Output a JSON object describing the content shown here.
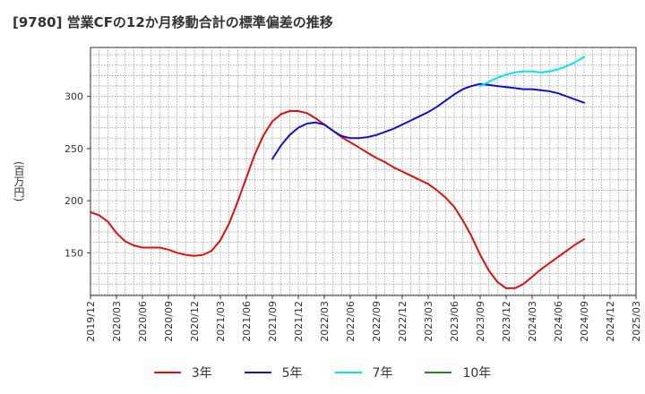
{
  "chart_data": {
    "type": "line",
    "title": "[9780]  営業CFの12か月移動合計の標準偏差の推移",
    "ylabel": "(百万円)",
    "xlabel": "",
    "ylim": [
      109,
      347
    ],
    "yticks": [
      150,
      200,
      250,
      300
    ],
    "x_ticks": [
      "2019/12",
      "2020/03",
      "2020/06",
      "2020/09",
      "2020/12",
      "2021/03",
      "2021/06",
      "2021/09",
      "2021/12",
      "2022/03",
      "2022/06",
      "2022/09",
      "2022/12",
      "2023/03",
      "2023/06",
      "2023/09",
      "2023/12",
      "2024/03",
      "2024/06",
      "2024/09",
      "2024/12",
      "2025/03"
    ],
    "grid": true,
    "legend_position": "bottom",
    "series": [
      {
        "name": "3年",
        "color": "#dd1111",
        "values": [
          [
            "2019/12",
            189
          ],
          [
            "2020/01",
            186
          ],
          [
            "2020/02",
            180
          ],
          [
            "2020/03",
            169
          ],
          [
            "2020/04",
            161
          ],
          [
            "2020/05",
            157
          ],
          [
            "2020/06",
            155
          ],
          [
            "2020/07",
            155
          ],
          [
            "2020/08",
            155
          ],
          [
            "2020/09",
            153
          ],
          [
            "2020/10",
            150
          ],
          [
            "2020/11",
            148
          ],
          [
            "2020/12",
            147
          ],
          [
            "2021/01",
            148
          ],
          [
            "2021/02",
            152
          ],
          [
            "2021/03",
            162
          ],
          [
            "2021/04",
            178
          ],
          [
            "2021/05",
            199
          ],
          [
            "2021/06",
            222
          ],
          [
            "2021/07",
            245
          ],
          [
            "2021/08",
            263
          ],
          [
            "2021/09",
            276
          ],
          [
            "2021/10",
            283
          ],
          [
            "2021/11",
            286
          ],
          [
            "2021/12",
            286
          ],
          [
            "2022/01",
            284
          ],
          [
            "2022/02",
            279
          ],
          [
            "2022/03",
            273
          ],
          [
            "2022/04",
            267
          ],
          [
            "2022/05",
            261
          ],
          [
            "2022/06",
            256
          ],
          [
            "2022/07",
            251
          ],
          [
            "2022/08",
            246
          ],
          [
            "2022/09",
            241
          ],
          [
            "2022/10",
            237
          ],
          [
            "2022/11",
            232
          ],
          [
            "2022/12",
            228
          ],
          [
            "2023/01",
            224
          ],
          [
            "2023/02",
            220
          ],
          [
            "2023/03",
            216
          ],
          [
            "2023/04",
            210
          ],
          [
            "2023/05",
            203
          ],
          [
            "2023/06",
            194
          ],
          [
            "2023/07",
            181
          ],
          [
            "2023/08",
            166
          ],
          [
            "2023/09",
            148
          ],
          [
            "2023/10",
            133
          ],
          [
            "2023/11",
            122
          ],
          [
            "2023/12",
            116
          ],
          [
            "2024/01",
            116
          ],
          [
            "2024/02",
            120
          ],
          [
            "2024/03",
            127
          ],
          [
            "2024/04",
            134
          ],
          [
            "2024/05",
            140
          ],
          [
            "2024/06",
            146
          ],
          [
            "2024/07",
            152
          ],
          [
            "2024/08",
            158
          ],
          [
            "2024/09",
            163
          ]
        ]
      },
      {
        "name": "5年",
        "color": "#1111cc",
        "values": [
          [
            "2021/09",
            240
          ],
          [
            "2021/10",
            253
          ],
          [
            "2021/11",
            263
          ],
          [
            "2021/12",
            270
          ],
          [
            "2022/01",
            274
          ],
          [
            "2022/02",
            275
          ],
          [
            "2022/03",
            273
          ],
          [
            "2022/04",
            267
          ],
          [
            "2022/05",
            262
          ],
          [
            "2022/06",
            260
          ],
          [
            "2022/07",
            260
          ],
          [
            "2022/08",
            261
          ],
          [
            "2022/09",
            263
          ],
          [
            "2022/10",
            266
          ],
          [
            "2022/11",
            269
          ],
          [
            "2022/12",
            273
          ],
          [
            "2023/01",
            277
          ],
          [
            "2023/02",
            281
          ],
          [
            "2023/03",
            285
          ],
          [
            "2023/04",
            290
          ],
          [
            "2023/05",
            296
          ],
          [
            "2023/06",
            302
          ],
          [
            "2023/07",
            307
          ],
          [
            "2023/08",
            310
          ],
          [
            "2023/09",
            312
          ],
          [
            "2023/10",
            311
          ],
          [
            "2023/11",
            310
          ],
          [
            "2023/12",
            309
          ],
          [
            "2024/01",
            308
          ],
          [
            "2024/02",
            307
          ],
          [
            "2024/03",
            307
          ],
          [
            "2024/04",
            306
          ],
          [
            "2024/05",
            305
          ],
          [
            "2024/06",
            303
          ],
          [
            "2024/07",
            300
          ],
          [
            "2024/08",
            297
          ],
          [
            "2024/09",
            294
          ]
        ]
      },
      {
        "name": "7年",
        "color": "#00e5ee",
        "values": [
          [
            "2023/09",
            310
          ],
          [
            "2023/10",
            314
          ],
          [
            "2023/11",
            318
          ],
          [
            "2023/12",
            321
          ],
          [
            "2024/01",
            323
          ],
          [
            "2024/02",
            324
          ],
          [
            "2024/03",
            324
          ],
          [
            "2024/04",
            323
          ],
          [
            "2024/05",
            324
          ],
          [
            "2024/06",
            326
          ],
          [
            "2024/07",
            329
          ],
          [
            "2024/08",
            333
          ],
          [
            "2024/09",
            338
          ]
        ]
      },
      {
        "name": "10年",
        "color": "#228822",
        "values": []
      }
    ]
  }
}
